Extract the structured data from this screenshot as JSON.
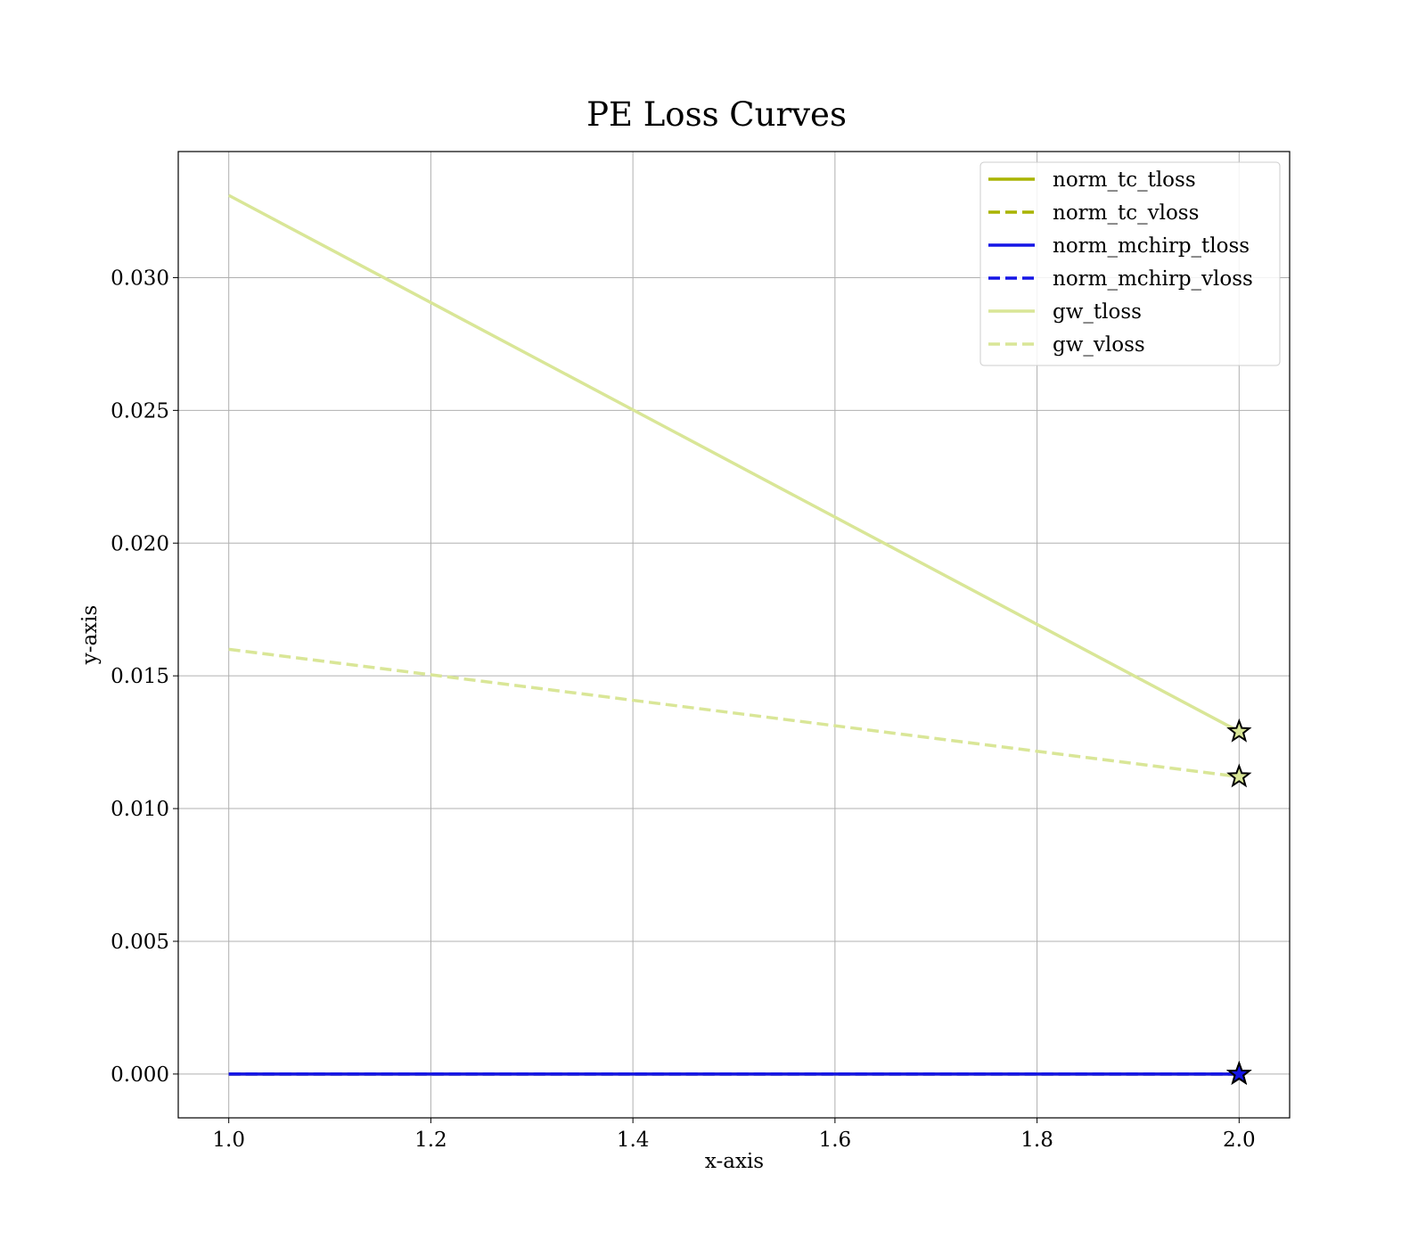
{
  "chart_data": {
    "type": "line",
    "title": "PE Loss Curves",
    "xlabel": "x-axis",
    "ylabel": "y-axis",
    "xlim": [
      0.95,
      2.05
    ],
    "ylim": [
      -0.00165,
      0.03475
    ],
    "xticks": [
      1.0,
      1.2,
      1.4,
      1.6,
      1.8,
      2.0
    ],
    "xtick_labels": [
      "1.0",
      "1.2",
      "1.4",
      "1.6",
      "1.8",
      "2.0"
    ],
    "yticks": [
      0.0,
      0.005,
      0.01,
      0.015,
      0.02,
      0.025,
      0.03
    ],
    "ytick_labels": [
      "0.000",
      "0.005",
      "0.010",
      "0.015",
      "0.020",
      "0.025",
      "0.030"
    ],
    "grid": true,
    "legend_position": "top-right",
    "final_point_marker": "star",
    "series": [
      {
        "name": "norm_tc_tloss",
        "x": [
          1,
          2
        ],
        "values": [
          0.0,
          0.0
        ],
        "color": "#a9b400",
        "dashed": false
      },
      {
        "name": "norm_tc_vloss",
        "x": [
          1,
          2
        ],
        "values": [
          0.0,
          0.0
        ],
        "color": "#a9b400",
        "dashed": true
      },
      {
        "name": "norm_mchirp_tloss",
        "x": [
          1,
          2
        ],
        "values": [
          0.0,
          0.0
        ],
        "color": "#1515e6",
        "dashed": false
      },
      {
        "name": "norm_mchirp_vloss",
        "x": [
          1,
          2
        ],
        "values": [
          0.0,
          0.0
        ],
        "color": "#1515e6",
        "dashed": true
      },
      {
        "name": "gw_tloss",
        "x": [
          1,
          2
        ],
        "values": [
          0.0331,
          0.0129
        ],
        "color": "#d9e697",
        "dashed": false
      },
      {
        "name": "gw_vloss",
        "x": [
          1,
          2
        ],
        "values": [
          0.016,
          0.0112
        ],
        "color": "#d9e697",
        "dashed": true
      }
    ]
  }
}
